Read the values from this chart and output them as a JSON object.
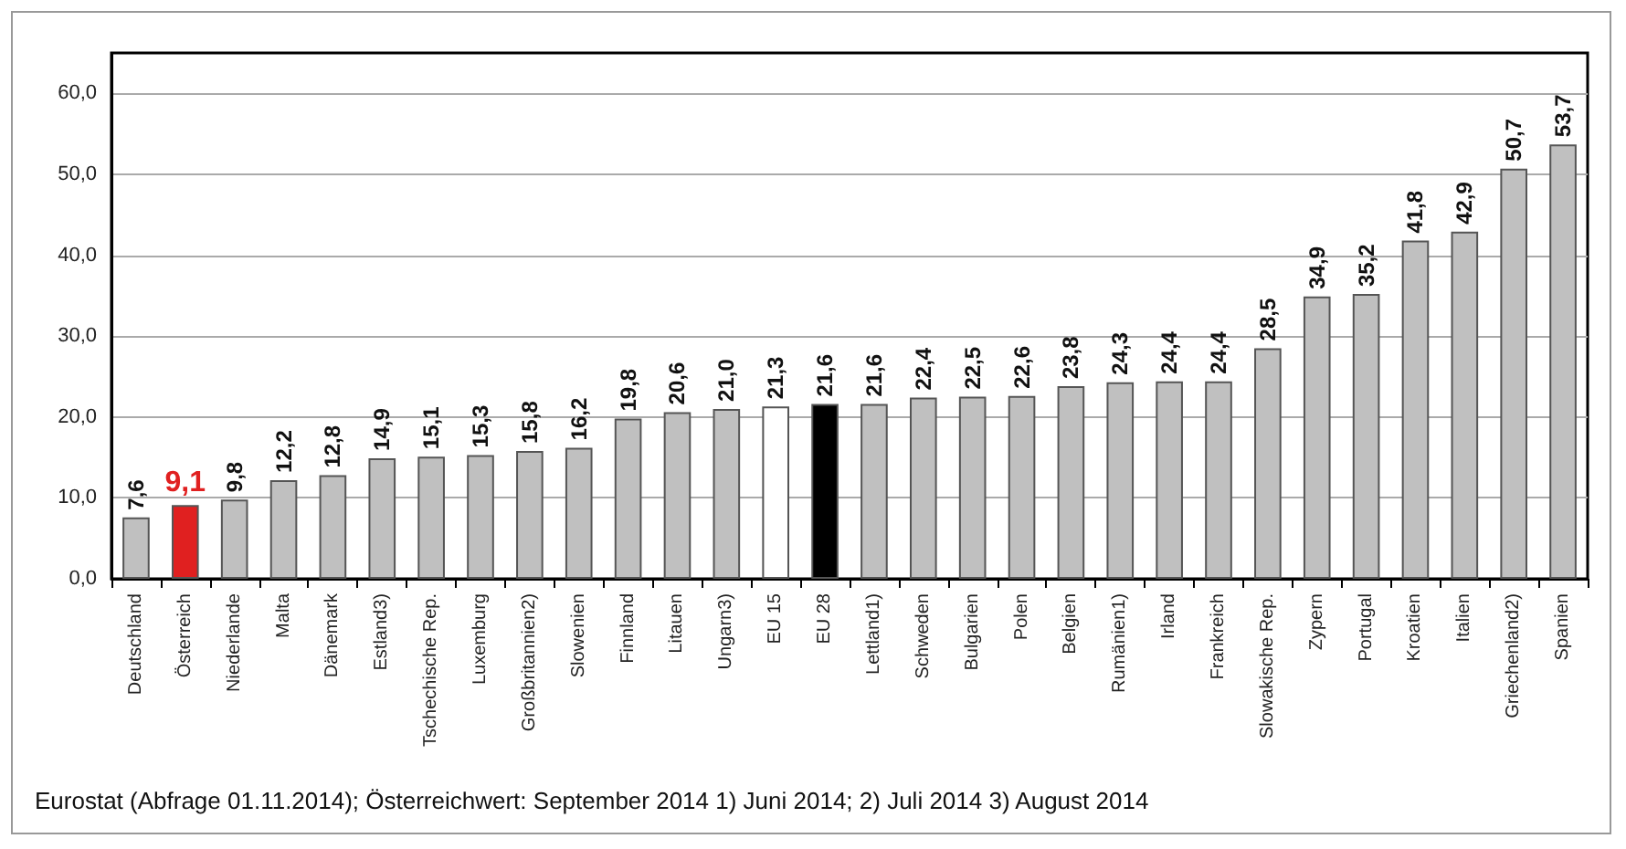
{
  "chart_data": {
    "type": "bar",
    "categories": [
      "Deutschland",
      "Österreich",
      "Niederlande",
      "Malta",
      "Dänemark",
      "Estland3)",
      "Tschechische Rep.",
      "Luxemburg",
      "Großbritannien2)",
      "Slowenien",
      "Finnland",
      "Litauen",
      "Ungarn3)",
      "EU 15",
      "EU 28",
      "Lettland1)",
      "Schweden",
      "Bulgarien",
      "Polen",
      "Belgien",
      "Rumänien1)",
      "Irland",
      "Frankreich",
      "Slowakische Rep.",
      "Zypern",
      "Portugal",
      "Kroatien",
      "Italien",
      "Griechenland2)",
      "Spanien"
    ],
    "values": [
      7.6,
      9.1,
      9.8,
      12.2,
      12.8,
      14.9,
      15.1,
      15.3,
      15.8,
      16.2,
      19.8,
      20.6,
      21.0,
      21.3,
      21.6,
      21.6,
      22.4,
      22.5,
      22.6,
      23.8,
      24.3,
      24.4,
      24.4,
      28.5,
      34.9,
      35.2,
      41.8,
      42.9,
      50.7,
      53.7
    ],
    "value_labels": [
      "7,6",
      "9,1",
      "9,8",
      "12,2",
      "12,8",
      "14,9",
      "15,1",
      "15,3",
      "15,8",
      "16,2",
      "19,8",
      "20,6",
      "21,0",
      "21,3",
      "21,6",
      "21,6",
      "22,4",
      "22,5",
      "22,6",
      "23,8",
      "24,3",
      "24,4",
      "24,4",
      "28,5",
      "34,9",
      "35,2",
      "41,8",
      "42,9",
      "50,7",
      "53,7"
    ],
    "colors": [
      "#c0c0c0",
      "#e02020",
      "#c0c0c0",
      "#c0c0c0",
      "#c0c0c0",
      "#c0c0c0",
      "#c0c0c0",
      "#c0c0c0",
      "#c0c0c0",
      "#c0c0c0",
      "#c0c0c0",
      "#c0c0c0",
      "#c0c0c0",
      "#ffffff",
      "#000000",
      "#c0c0c0",
      "#c0c0c0",
      "#c0c0c0",
      "#c0c0c0",
      "#c0c0c0",
      "#c0c0c0",
      "#c0c0c0",
      "#c0c0c0",
      "#c0c0c0",
      "#c0c0c0",
      "#c0c0c0",
      "#c0c0c0",
      "#c0c0c0",
      "#c0c0c0",
      "#c0c0c0"
    ],
    "ylim": [
      0,
      65
    ],
    "yticks": [
      {
        "value": 0,
        "label": "0,0"
      },
      {
        "value": 10,
        "label": "10,0"
      },
      {
        "value": 20,
        "label": "20,0"
      },
      {
        "value": 30,
        "label": "30,0"
      },
      {
        "value": 40,
        "label": "40,0"
      },
      {
        "value": 50,
        "label": "50,0"
      },
      {
        "value": 60,
        "label": "60,0"
      }
    ],
    "grid": "y",
    "annotations": [
      "Eurostat (Abfrage 01.11.2014); Österreichwert: September 2014 1) Juni 2014; 2) Juli 2014 3) August 2014"
    ]
  }
}
